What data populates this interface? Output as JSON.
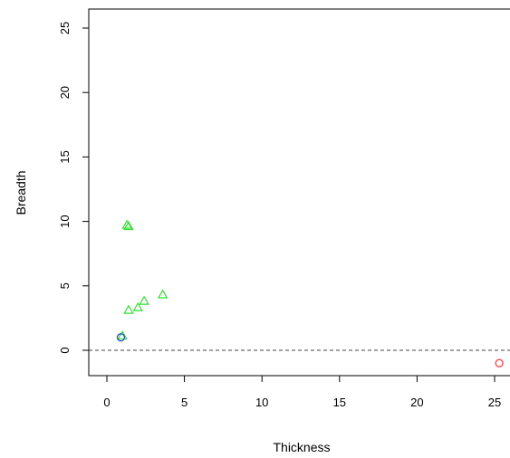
{
  "chart_data": {
    "type": "scatter",
    "xlabel": "Thickness",
    "ylabel": "Breadth",
    "xlim": [
      -1,
      26
    ],
    "ylim": [
      -2,
      26
    ],
    "x_ticks": [
      0,
      5,
      10,
      15,
      20,
      25
    ],
    "y_ticks": [
      0,
      5,
      10,
      15,
      20,
      25
    ],
    "x_tick_labels": [
      "0",
      "5",
      "10",
      "15",
      "20",
      "25"
    ],
    "y_tick_labels": [
      "0",
      "5",
      "10",
      "15",
      "20",
      "25"
    ],
    "reference_line": {
      "y": 0,
      "style": "dashed"
    },
    "grid": false,
    "series": [
      {
        "marker": "triangle",
        "color": "#33dd33",
        "points": [
          {
            "x": 1.0,
            "y": 1.1
          },
          {
            "x": 1.3,
            "y": 9.7
          },
          {
            "x": 1.4,
            "y": 9.6
          },
          {
            "x": 1.4,
            "y": 3.1
          },
          {
            "x": 2.0,
            "y": 3.3
          },
          {
            "x": 2.4,
            "y": 3.8
          },
          {
            "x": 3.6,
            "y": 4.3
          }
        ]
      },
      {
        "marker": "circle",
        "color": "#2244cc",
        "points": [
          {
            "x": 0.9,
            "y": 1.0
          }
        ]
      },
      {
        "marker": "circle",
        "color": "#ff3333",
        "points": [
          {
            "x": 25.3,
            "y": -1.0
          }
        ]
      }
    ]
  }
}
